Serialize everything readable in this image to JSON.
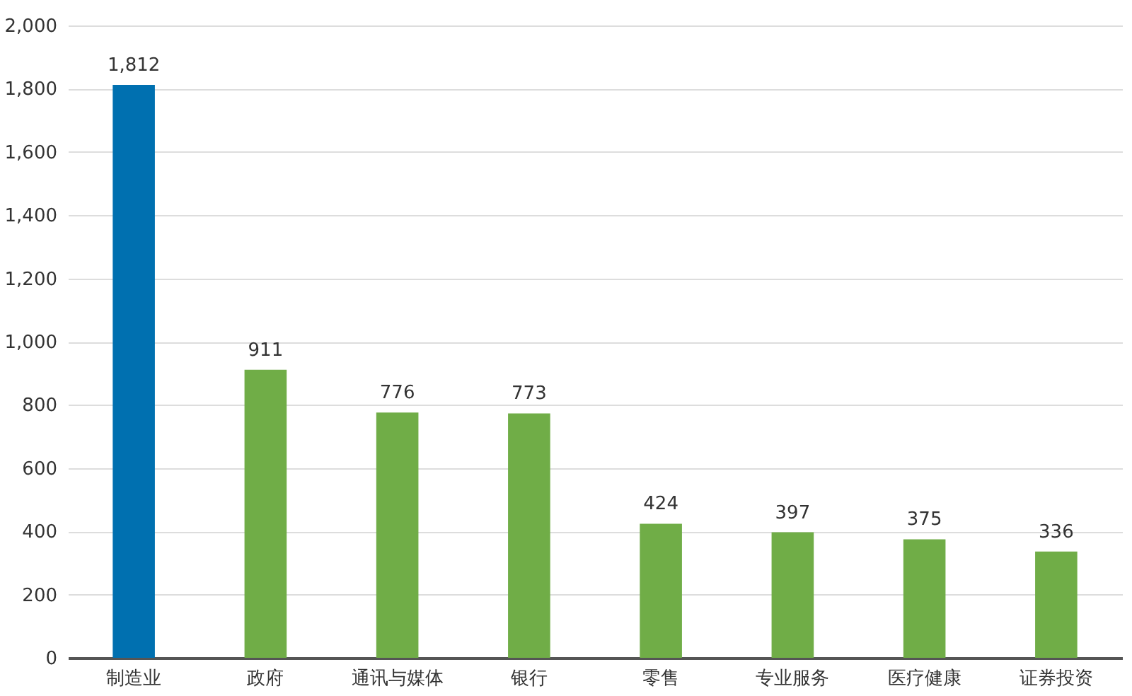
{
  "chart_data": {
    "type": "bar",
    "categories": [
      "制造业",
      "政府",
      "通讯与媒体",
      "银行",
      "零售",
      "专业服务",
      "医疗健康",
      "证券投资"
    ],
    "values": [
      1812,
      911,
      776,
      773,
      424,
      397,
      375,
      336
    ],
    "value_labels": [
      "1,812",
      "911",
      "776",
      "773",
      "424",
      "397",
      "375",
      "336"
    ],
    "colors": [
      "#0070b0",
      "#70ad47",
      "#70ad47",
      "#70ad47",
      "#70ad47",
      "#70ad47",
      "#70ad47",
      "#70ad47"
    ],
    "ylim": [
      0,
      2000
    ],
    "yticks": [
      0,
      200,
      400,
      600,
      800,
      {
        "value": 1000,
        "label": "1,000"
      },
      {
        "value": 1200,
        "label": "1,200"
      },
      {
        "value": 1400,
        "label": "1,400"
      },
      {
        "value": 1600,
        "label": "1,600"
      },
      {
        "value": 1800,
        "label": "1,800"
      },
      {
        "value": 2000,
        "label": "2,000"
      }
    ],
    "grid": "y"
  }
}
